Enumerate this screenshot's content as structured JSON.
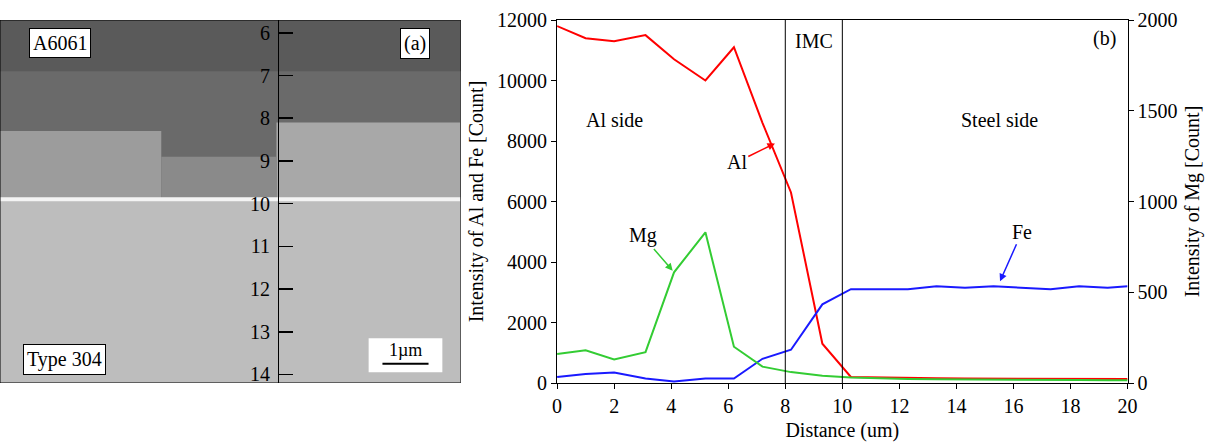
{
  "chart_data": [
    {
      "type": "micrograph",
      "ylim": [
        5.7,
        14.2
      ],
      "yticks": [
        6,
        7,
        8,
        9,
        10,
        11,
        12,
        13,
        14
      ],
      "interface": 9.9,
      "annotations": [
        {
          "text": "(a)"
        },
        {
          "text": "A6061"
        },
        {
          "text": "Type 304"
        }
      ],
      "scale_bar": "1µm"
    },
    {
      "type": "line",
      "x_label": "Distance (um)",
      "y_label": "Intensity of Al and Fe [Count]",
      "y2_label": "Intensity of Mg [Count]",
      "x": [
        0,
        1,
        2,
        3.1,
        4.1,
        5.2,
        6.2,
        7.2,
        8.2,
        9.3,
        10.3,
        11.3,
        12.3,
        13.3,
        14.3,
        15.3,
        16.3,
        17.3,
        18.3,
        19.3,
        20
      ],
      "series": [
        {
          "name": "Al",
          "color": "#ff0000",
          "values": [
            11800,
            11400,
            11300,
            11500,
            10700,
            10000,
            11100,
            8600,
            6300,
            1300,
            200,
            180,
            170,
            160,
            150,
            150,
            150,
            140,
            140,
            130,
            130
          ]
        },
        {
          "name": "Fe",
          "color": "#1a1aff",
          "values": [
            200,
            300,
            350,
            150,
            50,
            150,
            150,
            800,
            1100,
            2600,
            3100,
            3100,
            3100,
            3200,
            3150,
            3200,
            3150,
            3100,
            3200,
            3150,
            3200
          ]
        },
        {
          "name": "Mg",
          "color": "#33cc33",
          "axis": "y2",
          "values": [
            160,
            180,
            130,
            170,
            610,
            830,
            200,
            90,
            60,
            40,
            30,
            25,
            22,
            20,
            20,
            18,
            18,
            16,
            16,
            15,
            15
          ]
        }
      ],
      "xlim": [
        0,
        20
      ],
      "xticks": [
        0,
        2,
        4,
        6,
        8,
        10,
        12,
        14,
        16,
        18,
        20
      ],
      "ylim": [
        0,
        12000
      ],
      "yticks": [
        0,
        2000,
        4000,
        6000,
        8000,
        10000,
        12000
      ],
      "y2lim": [
        0,
        2000
      ],
      "y2ticks": [
        0,
        500,
        1000,
        1500,
        2000
      ],
      "vertical_lines": [
        8,
        10
      ],
      "annotations": [
        {
          "text": "Al side",
          "x": 2,
          "y": 8700
        },
        {
          "text": "IMC",
          "x": 9,
          "y": 11300
        },
        {
          "text": "Steel side",
          "x": 15.5,
          "y": 8700
        },
        {
          "text": "(b)",
          "x": 19.2,
          "y": 11400
        },
        {
          "text": "Al",
          "x": 6.3,
          "y": 7300,
          "arrow": [
            7.7,
            7950
          ],
          "color": "#ff0000"
        },
        {
          "text": "Fe",
          "x": 16.3,
          "y": 5000,
          "arrow": [
            15.5,
            3300
          ],
          "color": "#1a1aff"
        },
        {
          "text": "Mg",
          "x": 3.0,
          "y": 810,
          "axis": "y2",
          "arrow": [
            4.1,
            610
          ],
          "color": "#33cc33"
        }
      ],
      "grid": false
    }
  ]
}
